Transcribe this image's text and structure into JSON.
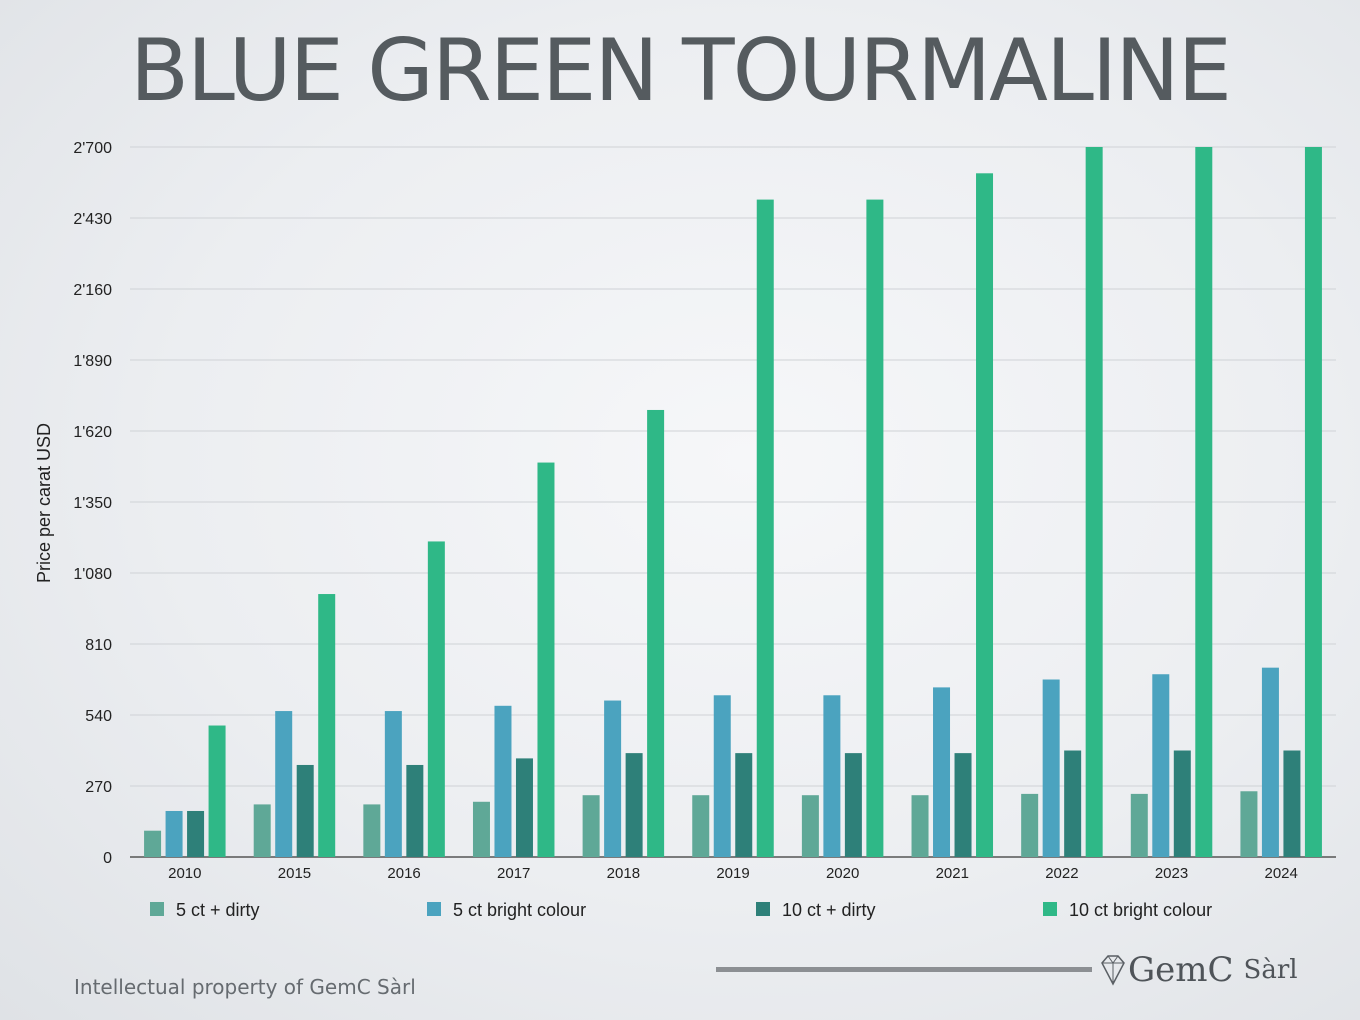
{
  "title": "BLUE GREEN TOURMALINE",
  "footer": {
    "note": "Intellectual property of GemC Sàrl",
    "logo_name": "GemC",
    "logo_suffix": "Sàrl",
    "logo_icon": "diamond-icon"
  },
  "chart_data": {
    "type": "bar",
    "title": "BLUE GREEN TOURMALINE",
    "ylabel": "Price per carat USD",
    "xlabel": "",
    "ylim": [
      0,
      2700
    ],
    "yticks": [
      0,
      270,
      540,
      810,
      1080,
      1350,
      1620,
      1890,
      2160,
      2430,
      2700
    ],
    "ytick_labels": [
      "0",
      "270",
      "540",
      "810",
      "1'080",
      "1'350",
      "1'620",
      "1'890",
      "2'160",
      "2'430",
      "2'700"
    ],
    "grid": true,
    "legend_position": "bottom",
    "categories": [
      "2010",
      "2015",
      "2016",
      "2017",
      "2018",
      "2019",
      "2020",
      "2021",
      "2022",
      "2023",
      "2024"
    ],
    "series": [
      {
        "name": "5 ct + dirty",
        "color": "#5fa897",
        "values": [
          100,
          200,
          200,
          210,
          235,
          235,
          235,
          235,
          240,
          240,
          250
        ]
      },
      {
        "name": "5 ct bright colour",
        "color": "#4ba3bf",
        "values": [
          175,
          555,
          555,
          575,
          595,
          615,
          615,
          645,
          675,
          695,
          720
        ]
      },
      {
        "name": "10 ct + dirty",
        "color": "#2e8079",
        "values": [
          175,
          350,
          350,
          375,
          395,
          395,
          395,
          395,
          405,
          405,
          405
        ]
      },
      {
        "name": "10 ct bright colour",
        "color": "#2fb887",
        "values": [
          500,
          1000,
          1200,
          1500,
          1700,
          2500,
          2500,
          2600,
          2700,
          2700,
          2700
        ]
      }
    ]
  }
}
